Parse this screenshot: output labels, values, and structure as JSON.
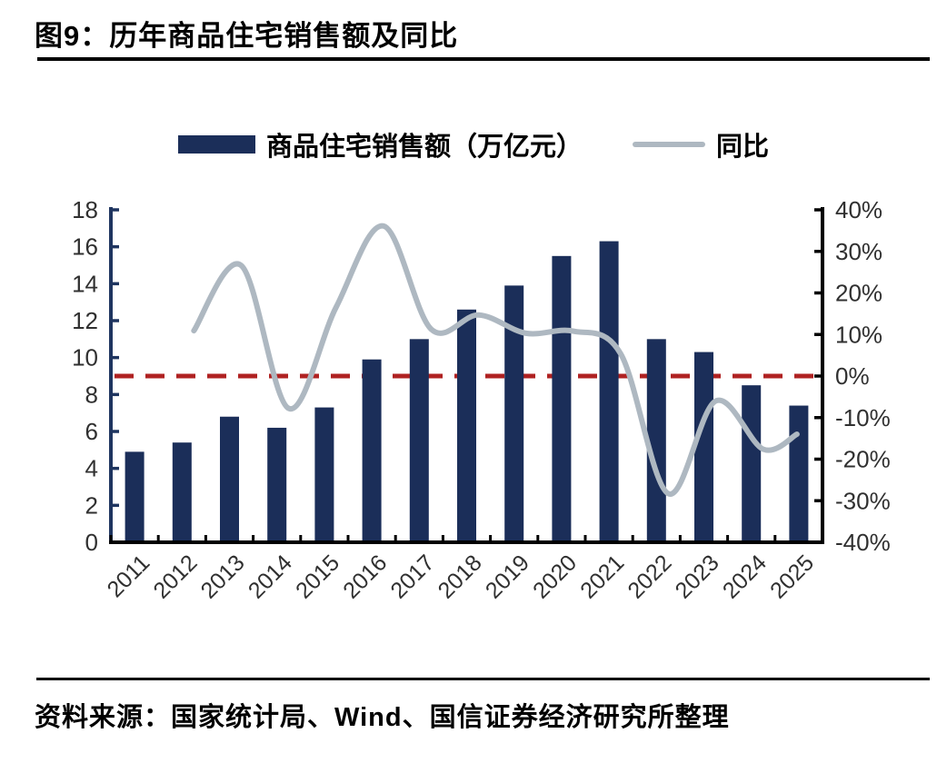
{
  "title": "图9：历年商品住宅销售额及同比",
  "source": "资料来源：国家统计局、Wind、国信证券经济研究所整理",
  "legend": [
    {
      "type": "bar",
      "label": "商品住宅销售额（万亿元）"
    },
    {
      "type": "line",
      "label": "同比"
    }
  ],
  "colors": {
    "bar": "#1b2e59",
    "line": "#aeb8c1",
    "zero_line": "#b02222",
    "left_axis": "#1f3560",
    "right_axis": "#000000",
    "tick_text": "#303030"
  },
  "chart_data": {
    "type": "bar",
    "subtype": "bar+line combo, dual axis",
    "categories": [
      "2011",
      "2012",
      "2013",
      "2014",
      "2015",
      "2016",
      "2017",
      "2018",
      "2019",
      "2020",
      "2021",
      "2022",
      "2023",
      "2024",
      "2025"
    ],
    "series": [
      {
        "name": "商品住宅销售额（万亿元）",
        "type": "bar",
        "axis": "left",
        "values": [
          4.9,
          5.4,
          6.8,
          6.2,
          7.3,
          9.9,
          11.0,
          12.6,
          13.9,
          15.5,
          16.3,
          11.0,
          10.3,
          8.5,
          7.4
        ]
      },
      {
        "name": "同比",
        "type": "line",
        "axis": "right",
        "unit": "%",
        "x": [
          "2012",
          "2013",
          "2014",
          "2015",
          "2016",
          "2017",
          "2018",
          "2019",
          "2020",
          "2021",
          "2022",
          "2023",
          "2024",
          "2025"
        ],
        "values": [
          10.9,
          26.6,
          -7.8,
          16.6,
          36.1,
          11.3,
          14.7,
          10.3,
          10.8,
          5.3,
          -28.3,
          -6.0,
          -17.6,
          -14.0
        ]
      }
    ],
    "left_axis": {
      "min": 0,
      "max": 18,
      "step": 2,
      "ticks": [
        "18",
        "16",
        "14",
        "12",
        "10",
        "8",
        "6",
        "4",
        "2",
        "0"
      ]
    },
    "right_axis": {
      "min": -40,
      "max": 40,
      "step": 10,
      "ticks": [
        "40%",
        "30%",
        "20%",
        "10%",
        "0%",
        "-10%",
        "-20%",
        "-30%",
        "-40%"
      ]
    },
    "reference_line": {
      "axis": "right",
      "value": 0,
      "style": "dashed",
      "color": "#b02222"
    },
    "grid": "off",
    "legend_position": "top-center"
  }
}
